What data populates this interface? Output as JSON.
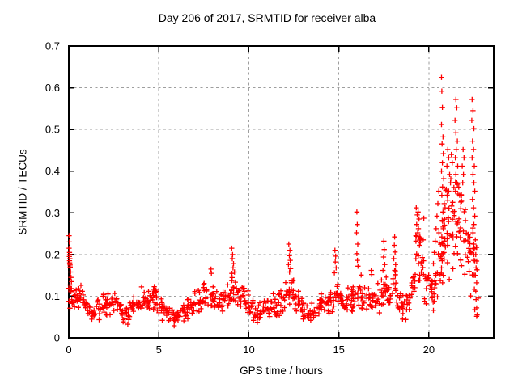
{
  "colors": {
    "marker": "#ff0000",
    "grid": "#9e9e9e",
    "axis": "#000000",
    "text": "#000000",
    "background": "#ffffff"
  },
  "chart_data": {
    "type": "scatter",
    "title": "Day 206 of 2017, SRMTID for receiver alba",
    "xlabel": "GPS time / hours",
    "ylabel": "SRMTID / TECUs",
    "xlim": [
      0,
      23.6
    ],
    "ylim": [
      0,
      0.7
    ],
    "xticks": [
      0,
      5,
      10,
      15,
      20
    ],
    "xtick_labels": [
      "0",
      "5",
      "10",
      "15",
      "20"
    ],
    "yticks": [
      0,
      0.1,
      0.2,
      0.3,
      0.4,
      0.5,
      0.6,
      0.7
    ],
    "ytick_labels": [
      "0",
      "0.1",
      "0.2",
      "0.3",
      "0.4",
      "0.5",
      "0.6",
      "0.7"
    ],
    "grid": true,
    "legend": "none",
    "marker": "plus",
    "marker_color": "#ff0000",
    "series_name": "SRMTID",
    "seed": 42,
    "band_step_hours": 0.25,
    "band_default_count": 9,
    "band": [
      [
        0,
        0.06,
        0.15,
        10
      ],
      [
        0.25,
        0.06,
        0.14,
        10
      ],
      [
        0.5,
        0.06,
        0.13,
        10
      ],
      [
        0.75,
        0.05,
        0.12
      ],
      [
        1,
        0.04,
        0.1
      ],
      [
        1.25,
        0.035,
        0.09
      ],
      [
        1.5,
        0.04,
        0.1
      ],
      [
        1.75,
        0.045,
        0.11
      ],
      [
        2,
        0.05,
        0.12
      ],
      [
        2.25,
        0.05,
        0.115
      ],
      [
        2.5,
        0.04,
        0.11
      ],
      [
        2.75,
        0.03,
        0.095
      ],
      [
        3,
        0.03,
        0.085
      ],
      [
        3.25,
        0.03,
        0.09
      ],
      [
        3.5,
        0.04,
        0.11
      ],
      [
        3.75,
        0.04,
        0.12
      ],
      [
        4,
        0.05,
        0.13
      ],
      [
        4.25,
        0.05,
        0.13,
        10
      ],
      [
        4.5,
        0.05,
        0.125,
        10
      ],
      [
        4.75,
        0.05,
        0.13,
        10
      ],
      [
        5,
        0.04,
        0.11
      ],
      [
        5.25,
        0.035,
        0.095
      ],
      [
        5.5,
        0.03,
        0.08
      ],
      [
        5.75,
        0.025,
        0.07
      ],
      [
        6,
        0.03,
        0.08
      ],
      [
        6.25,
        0.035,
        0.09
      ],
      [
        6.5,
        0.04,
        0.1
      ],
      [
        6.75,
        0.045,
        0.11
      ],
      [
        7,
        0.05,
        0.12
      ],
      [
        7.25,
        0.055,
        0.14
      ],
      [
        7.5,
        0.06,
        0.15
      ],
      [
        7.75,
        0.055,
        0.13
      ],
      [
        8,
        0.055,
        0.135
      ],
      [
        8.25,
        0.05,
        0.12
      ],
      [
        8.5,
        0.05,
        0.12
      ],
      [
        8.75,
        0.055,
        0.13
      ],
      [
        9,
        0.07,
        0.16,
        10
      ],
      [
        9.25,
        0.065,
        0.15
      ],
      [
        9.5,
        0.055,
        0.13
      ],
      [
        9.75,
        0.05,
        0.12
      ],
      [
        10,
        0.04,
        0.1
      ],
      [
        10.25,
        0.03,
        0.085
      ],
      [
        10.5,
        0.035,
        0.09
      ],
      [
        10.75,
        0.04,
        0.105
      ],
      [
        11,
        0.04,
        0.1
      ],
      [
        11.25,
        0.045,
        0.11
      ],
      [
        11.5,
        0.05,
        0.12
      ],
      [
        11.75,
        0.055,
        0.13
      ],
      [
        12,
        0.065,
        0.15,
        10
      ],
      [
        12.25,
        0.07,
        0.16,
        10
      ],
      [
        12.5,
        0.055,
        0.13
      ],
      [
        12.75,
        0.05,
        0.12
      ],
      [
        13,
        0.04,
        0.1
      ],
      [
        13.25,
        0.03,
        0.08
      ],
      [
        13.5,
        0.035,
        0.09
      ],
      [
        13.75,
        0.045,
        0.11
      ],
      [
        14,
        0.05,
        0.12
      ],
      [
        14.25,
        0.05,
        0.115
      ],
      [
        14.5,
        0.055,
        0.125
      ],
      [
        14.75,
        0.07,
        0.15
      ],
      [
        15,
        0.055,
        0.13
      ],
      [
        15.25,
        0.05,
        0.12
      ],
      [
        15.5,
        0.055,
        0.13
      ],
      [
        15.75,
        0.06,
        0.14
      ],
      [
        16,
        0.07,
        0.16
      ],
      [
        16.25,
        0.055,
        0.135
      ],
      [
        16.5,
        0.055,
        0.13
      ],
      [
        16.75,
        0.06,
        0.145
      ],
      [
        17,
        0.055,
        0.135
      ],
      [
        17.25,
        0.055,
        0.14
      ],
      [
        17.5,
        0.07,
        0.16
      ],
      [
        17.75,
        0.055,
        0.13
      ],
      [
        18,
        0.07,
        0.17
      ],
      [
        18.25,
        0.05,
        0.12
      ],
      [
        18.5,
        0.04,
        0.11
      ],
      [
        18.75,
        0.05,
        0.12
      ],
      [
        19,
        0.06,
        0.17,
        10
      ],
      [
        19.25,
        0.1,
        0.28,
        12
      ],
      [
        19.5,
        0.1,
        0.3,
        12
      ],
      [
        19.75,
        0.07,
        0.18,
        10
      ],
      [
        20,
        0.06,
        0.16,
        10
      ],
      [
        20.25,
        0.08,
        0.22,
        11
      ],
      [
        20.5,
        0.1,
        0.3,
        12
      ],
      [
        20.75,
        0.1,
        0.42,
        13
      ],
      [
        21,
        0.1,
        0.4,
        13
      ],
      [
        21.25,
        0.12,
        0.42,
        13
      ],
      [
        21.5,
        0.14,
        0.44,
        13
      ],
      [
        21.75,
        0.12,
        0.4,
        13
      ],
      [
        22,
        0.1,
        0.38,
        12
      ],
      [
        22.25,
        0.06,
        0.34,
        12
      ],
      [
        22.5,
        0.04,
        0.24,
        10
      ]
    ],
    "spike_points": [
      [
        0.02,
        0.245
      ],
      [
        0.03,
        0.23
      ],
      [
        0.02,
        0.215
      ],
      [
        0.04,
        0.205
      ],
      [
        0.05,
        0.2
      ],
      [
        0.03,
        0.195
      ],
      [
        0.06,
        0.19
      ],
      [
        0.04,
        0.185
      ],
      [
        0.05,
        0.18
      ],
      [
        0.07,
        0.175
      ],
      [
        0.08,
        0.17
      ],
      [
        0.1,
        0.158
      ],
      [
        0.12,
        0.145
      ],
      [
        0.15,
        0.135
      ],
      [
        7.9,
        0.165
      ],
      [
        7.92,
        0.155
      ],
      [
        9.05,
        0.215
      ],
      [
        9.1,
        0.2
      ],
      [
        9.08,
        0.19
      ],
      [
        9.15,
        0.178
      ],
      [
        9.12,
        0.168
      ],
      [
        9.2,
        0.158
      ],
      [
        12.22,
        0.225
      ],
      [
        12.28,
        0.21
      ],
      [
        12.25,
        0.197
      ],
      [
        12.3,
        0.186
      ],
      [
        12.2,
        0.176
      ],
      [
        12.32,
        0.166
      ],
      [
        12.26,
        0.158
      ],
      [
        14.78,
        0.21
      ],
      [
        14.82,
        0.196
      ],
      [
        14.8,
        0.182
      ],
      [
        14.85,
        0.168
      ],
      [
        14.75,
        0.156
      ],
      [
        16,
        0.302
      ],
      [
        16.02,
        0.272
      ],
      [
        15.98,
        0.252
      ],
      [
        16.05,
        0.225
      ],
      [
        16,
        0.202
      ],
      [
        16.03,
        0.186
      ],
      [
        16.06,
        0.172
      ],
      [
        16.8,
        0.162
      ],
      [
        16.82,
        0.152
      ],
      [
        17.5,
        0.232
      ],
      [
        17.52,
        0.212
      ],
      [
        17.48,
        0.194
      ],
      [
        17.55,
        0.176
      ],
      [
        17.45,
        0.162
      ],
      [
        18.1,
        0.242
      ],
      [
        18.08,
        0.222
      ],
      [
        18.12,
        0.206
      ],
      [
        18.05,
        0.19
      ],
      [
        18.15,
        0.176
      ],
      [
        18.1,
        0.162
      ],
      [
        19.3,
        0.312
      ],
      [
        19.35,
        0.295
      ],
      [
        19.4,
        0.302
      ],
      [
        19.45,
        0.285
      ],
      [
        19.32,
        0.272
      ],
      [
        19.42,
        0.262
      ],
      [
        19.38,
        0.252
      ],
      [
        19.5,
        0.242
      ],
      [
        19.28,
        0.232
      ],
      [
        19.48,
        0.222
      ],
      [
        20.3,
        0.205
      ],
      [
        20.35,
        0.232
      ],
      [
        20.4,
        0.262
      ],
      [
        20.45,
        0.292
      ],
      [
        20.5,
        0.322
      ],
      [
        20.55,
        0.352
      ],
      [
        20.7,
        0.625
      ],
      [
        20.72,
        0.592
      ],
      [
        20.75,
        0.553
      ],
      [
        20.7,
        0.512
      ],
      [
        20.78,
        0.482
      ],
      [
        20.73,
        0.465
      ],
      [
        20.8,
        0.442
      ],
      [
        20.75,
        0.42
      ],
      [
        20.7,
        0.4
      ],
      [
        20.82,
        0.382
      ],
      [
        20.76,
        0.362
      ],
      [
        20.72,
        0.342
      ],
      [
        20.85,
        0.322
      ],
      [
        20.78,
        0.302
      ],
      [
        20.74,
        0.282
      ],
      [
        20.8,
        0.262
      ],
      [
        20.72,
        0.242
      ],
      [
        20.85,
        0.222
      ],
      [
        20.78,
        0.202
      ],
      [
        20.74,
        0.185
      ],
      [
        20.7,
        0.168
      ],
      [
        20.8,
        0.15
      ],
      [
        20.76,
        0.132
      ],
      [
        21.05,
        0.452
      ],
      [
        21.1,
        0.432
      ],
      [
        21,
        0.412
      ],
      [
        21.15,
        0.392
      ],
      [
        21.2,
        0.372
      ],
      [
        21.1,
        0.352
      ],
      [
        21.25,
        0.44
      ],
      [
        21.3,
        0.42
      ],
      [
        21.5,
        0.572
      ],
      [
        21.55,
        0.552
      ],
      [
        21.45,
        0.522
      ],
      [
        21.5,
        0.492
      ],
      [
        21.58,
        0.472
      ],
      [
        21.52,
        0.452
      ],
      [
        21.47,
        0.432
      ],
      [
        21.6,
        0.412
      ],
      [
        21.5,
        0.392
      ],
      [
        21.55,
        0.372
      ],
      [
        21.48,
        0.352
      ],
      [
        21.9,
        0.452
      ],
      [
        21.95,
        0.432
      ],
      [
        21.85,
        0.412
      ],
      [
        21.92,
        0.392
      ],
      [
        21.88,
        0.372
      ],
      [
        22.4,
        0.572
      ],
      [
        22.45,
        0.545
      ],
      [
        22.38,
        0.522
      ],
      [
        22.5,
        0.502
      ],
      [
        22.42,
        0.472
      ],
      [
        22.48,
        0.452
      ],
      [
        22.4,
        0.432
      ],
      [
        22.52,
        0.412
      ],
      [
        22.45,
        0.392
      ],
      [
        22.5,
        0.372
      ],
      [
        22.55,
        0.352
      ],
      [
        22.42,
        0.332
      ],
      [
        22.48,
        0.312
      ],
      [
        22.55,
        0.292
      ],
      [
        22.5,
        0.272
      ],
      [
        22.45,
        0.252
      ],
      [
        22.58,
        0.235
      ],
      [
        22.52,
        0.215
      ],
      [
        22.6,
        0.2
      ],
      [
        22.55,
        0.185
      ],
      [
        22.62,
        0.168
      ],
      [
        22.58,
        0.15
      ],
      [
        22.65,
        0.132
      ],
      [
        22.6,
        0.112
      ],
      [
        22.62,
        0.092
      ],
      [
        22.65,
        0.072
      ],
      [
        22.68,
        0.055
      ]
    ]
  }
}
